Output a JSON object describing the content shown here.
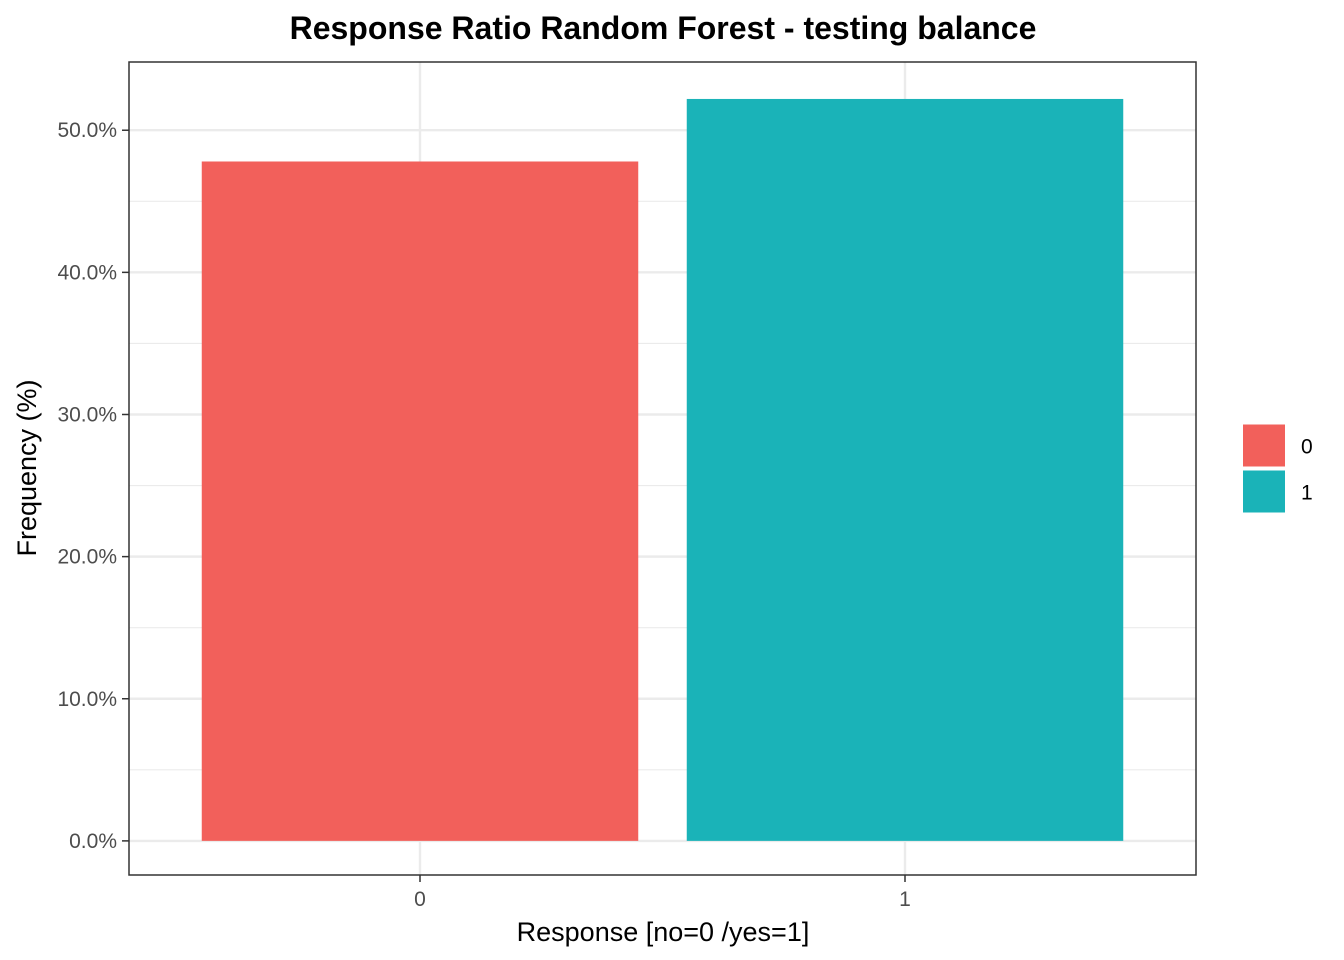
{
  "chart_data": {
    "type": "bar",
    "title": "Response Ratio Random Forest - testing balance",
    "xlabel": "Response [no=0 /yes=1]",
    "ylabel": "Frequency (%)",
    "categories": [
      "0",
      "1"
    ],
    "values": [
      47.8,
      52.2
    ],
    "colors": [
      "#F2605B",
      "#1AB3B8"
    ],
    "ylim": [
      -2.4,
      54.8
    ],
    "y_ticks": [
      0,
      10,
      20,
      30,
      40,
      50
    ],
    "y_tick_labels": [
      "0.0%",
      "10.0%",
      "20.0%",
      "30.0%",
      "40.0%",
      "50.0%"
    ],
    "grid": true,
    "legend": {
      "position": "right",
      "entries": [
        "0",
        "1"
      ]
    }
  }
}
